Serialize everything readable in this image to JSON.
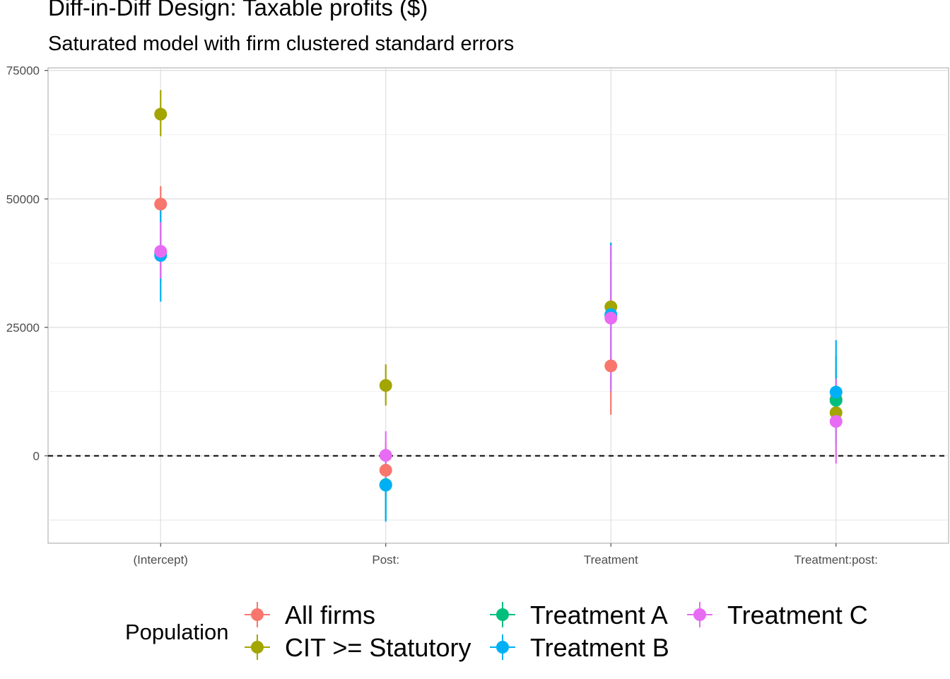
{
  "chart_data": {
    "type": "scatter",
    "title": "Diff-in-Diff Design: Taxable profits  ($)",
    "subtitle": "Saturated model with firm clustered standard errors",
    "categories": [
      "(Intercept)",
      "Post:",
      "Treatment",
      "Treatment:post:"
    ],
    "y_ticks": [
      0,
      25000,
      50000,
      75000
    ],
    "ylim": [
      -17000,
      75500
    ],
    "reference_line": 0,
    "grid": true,
    "legend": {
      "title": "Population",
      "position": "bottom",
      "entries": [
        "All firms",
        "CIT >= Statutory",
        "Treatment A",
        "Treatment B",
        "Treatment C"
      ]
    },
    "series": [
      {
        "name": "All firms",
        "color": "#F8766D",
        "values": [
          49000,
          -2800,
          17500,
          11000
        ],
        "lower": [
          45500,
          -8000,
          8000,
          5000
        ],
        "upper": [
          52500,
          2500,
          27000,
          17000
        ]
      },
      {
        "name": "CIT >= Statutory",
        "color": "#A3A500",
        "values": [
          66500,
          13700,
          29000,
          8400
        ],
        "lower": [
          62200,
          9800,
          16500,
          0
        ],
        "upper": [
          71200,
          17800,
          41500,
          17000
        ]
      },
      {
        "name": "Treatment A",
        "color": "#00BF7D",
        "values": [
          39500,
          -5600,
          27300,
          10800
        ],
        "lower": [
          34000,
          -12500,
          12500,
          2000
        ],
        "upper": [
          45500,
          1500,
          41500,
          19500
        ]
      },
      {
        "name": "Treatment B",
        "color": "#00B0F6",
        "values": [
          39000,
          -5700,
          27500,
          12400
        ],
        "lower": [
          30000,
          -12800,
          13000,
          3000
        ],
        "upper": [
          48000,
          1000,
          41500,
          22500
        ]
      },
      {
        "name": "Treatment C",
        "color": "#E76BF3",
        "values": [
          39800,
          100,
          26800,
          6700
        ],
        "lower": [
          34500,
          -4500,
          12500,
          -1500
        ],
        "upper": [
          45500,
          4800,
          41000,
          15000
        ]
      }
    ]
  }
}
